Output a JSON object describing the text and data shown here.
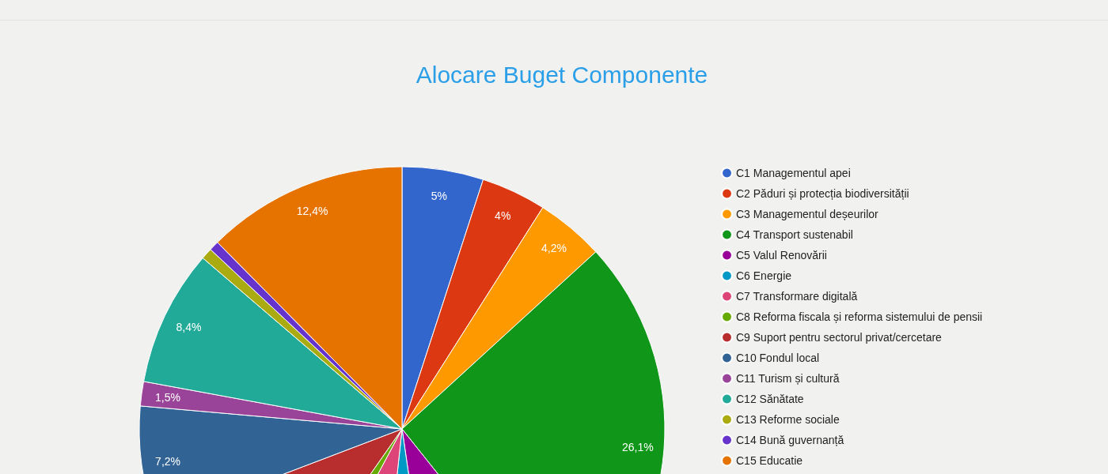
{
  "chart_data": {
    "type": "pie",
    "title": "Alocare Buget Componente",
    "categories": [
      "C1 Managementul apei",
      "C2 Păduri și protecția biodiversității",
      "C3 Managementul deșeurilor",
      "C4 Transport sustenabil",
      "C5 Valul Renovării",
      "C6 Energie",
      "C7 Transformare digitală",
      "C8 Reforma fiscala și reforma sistemului de pensii",
      "C9 Suport pentru sectorul privat/cercetare",
      "C10 Fondul local",
      "C11 Turism și cultură",
      "C12 Sănătate",
      "C13 Reforme sociale",
      "C14 Bună guvernanță",
      "C15 Educatie"
    ],
    "values": [
      5,
      4,
      4.2,
      26.1,
      8.4,
      4.0,
      6.1,
      1.9,
      9.5,
      7.2,
      1.5,
      8.4,
      0.7,
      0.6,
      12.4
    ],
    "colors": [
      "#3366cc",
      "#dc3912",
      "#ff9900",
      "#109618",
      "#990099",
      "#0099c6",
      "#dd4477",
      "#66aa00",
      "#b82e2e",
      "#316395",
      "#994499",
      "#22aa99",
      "#aaaa11",
      "#6633cc",
      "#e67300"
    ],
    "value_labels": [
      "5%",
      "4%",
      "4,2%",
      "26,1%",
      null,
      null,
      null,
      null,
      null,
      "7,2%",
      "1,5%",
      "8,4%",
      null,
      null,
      "12,4%"
    ],
    "legend": "right"
  }
}
